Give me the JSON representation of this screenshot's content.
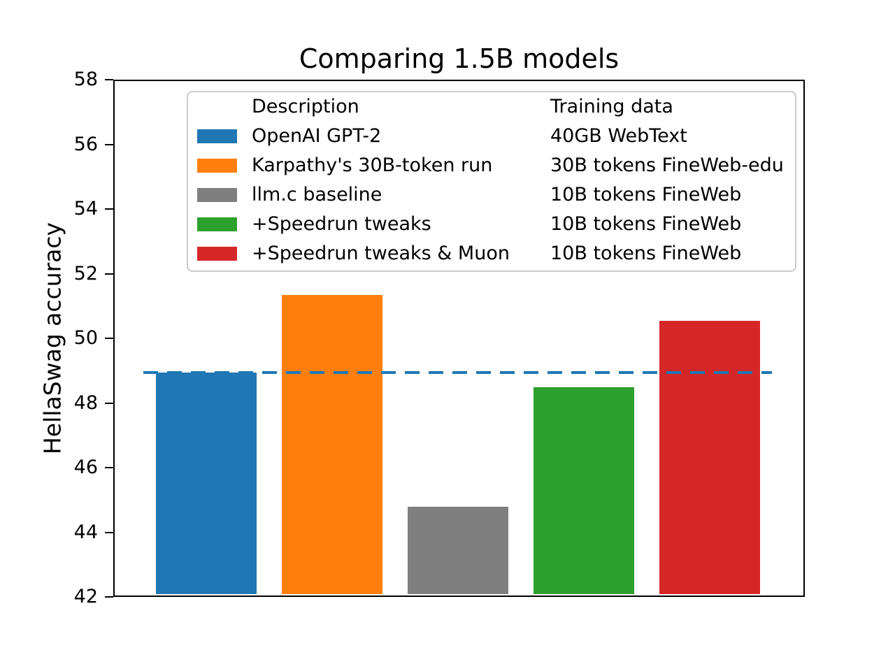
{
  "chart_data": {
    "type": "bar",
    "title": "Comparing 1.5B models",
    "xlabel": "",
    "ylabel": "HellaSwag accuracy",
    "ylim": [
      42,
      58
    ],
    "yticks": [
      42,
      44,
      46,
      48,
      50,
      52,
      54,
      56,
      58
    ],
    "grid": false,
    "legend_position": "upper center, inside plot",
    "legend_headers": {
      "description": "Description",
      "training_data": "Training data"
    },
    "bars": [
      {
        "description": "OpenAI GPT-2",
        "training_data": "40GB WebText",
        "color": "#1f77b4",
        "value": 48.9
      },
      {
        "description": "Karpathy's 30B-token run",
        "training_data": "30B tokens FineWeb-edu",
        "color": "#ff7f0e",
        "value": 51.3
      },
      {
        "description": "llm.c baseline",
        "training_data": "10B tokens FineWeb",
        "color": "#7f7f7f",
        "value": 44.75
      },
      {
        "description": "+Speedrun tweaks",
        "training_data": "10B tokens FineWeb",
        "color": "#2ca02c",
        "value": 48.45
      },
      {
        "description": "+Speedrun tweaks & Muon",
        "training_data": "10B tokens FineWeb",
        "color": "#d62728",
        "value": 50.5
      }
    ],
    "reference_line": {
      "value": 48.93,
      "style": "dashed",
      "color": "#1f77b4"
    }
  }
}
